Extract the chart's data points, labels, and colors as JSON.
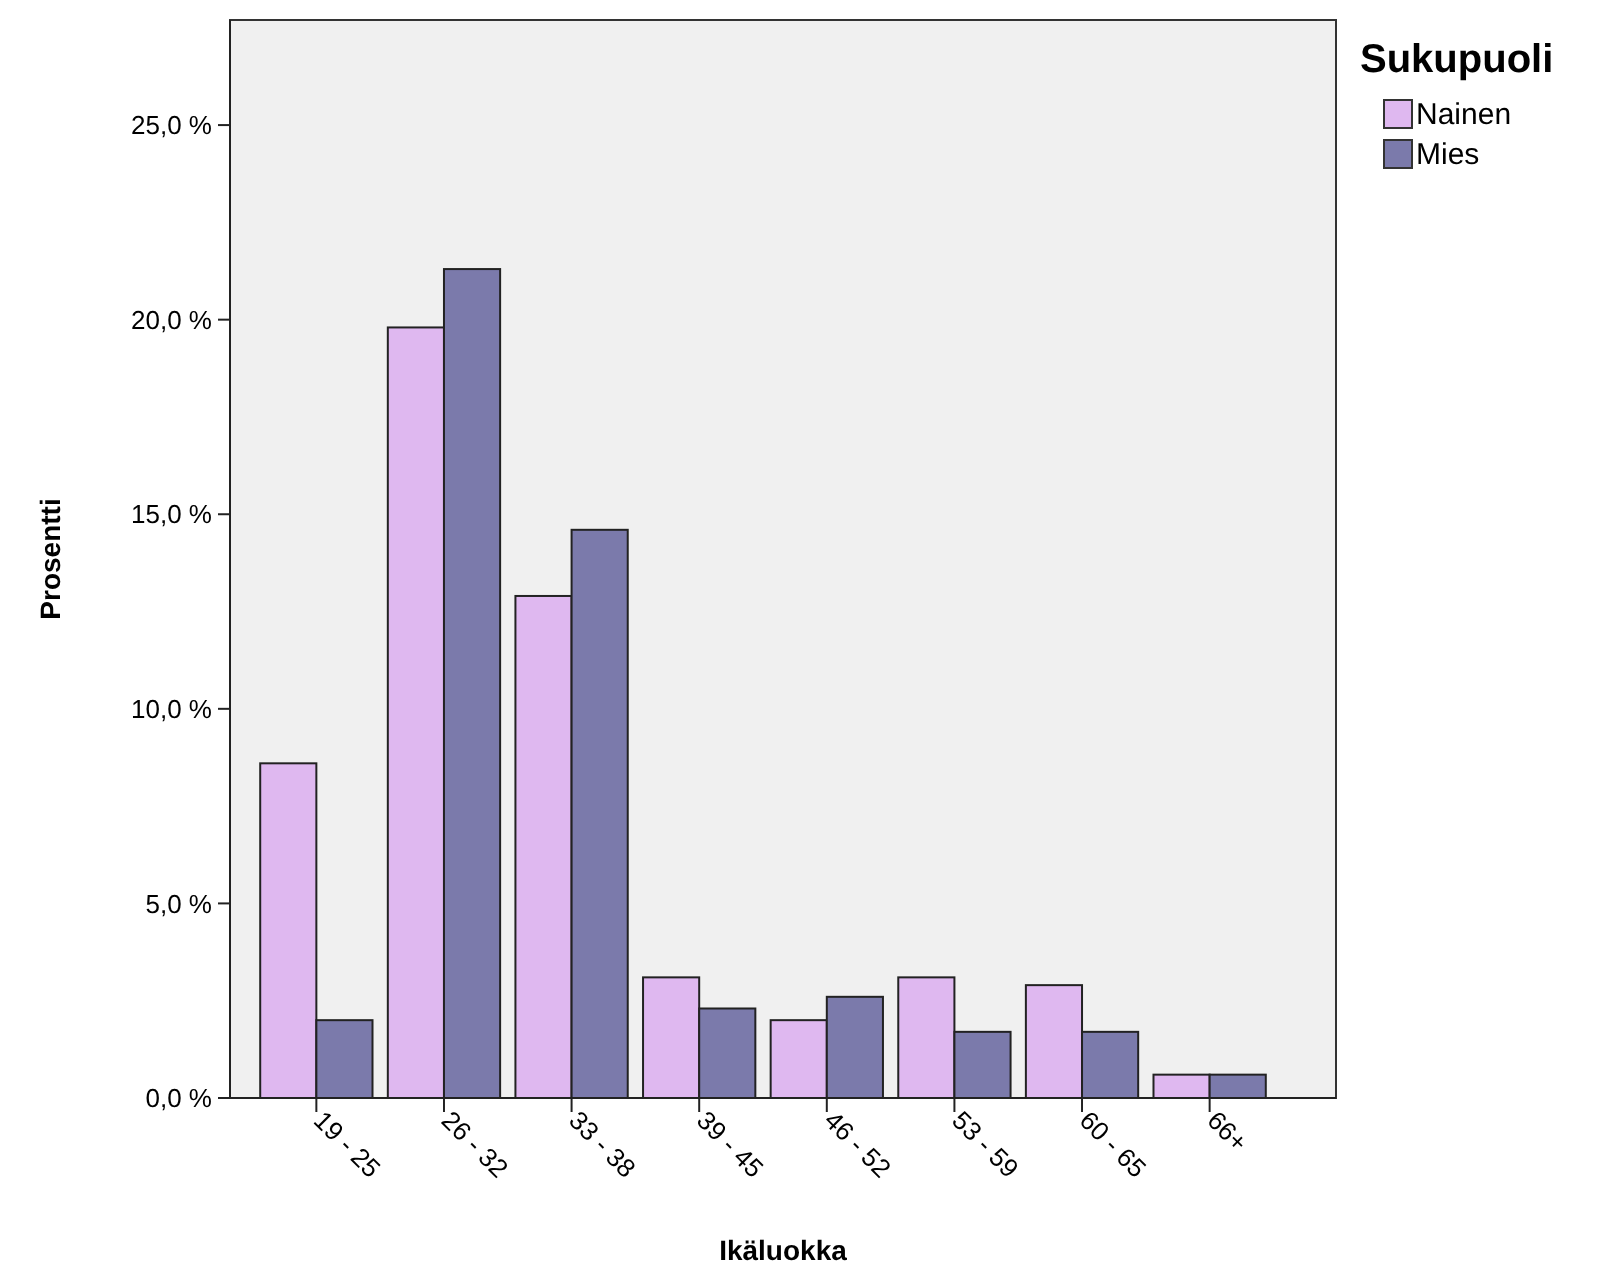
{
  "chart_data": {
    "type": "bar",
    "xlabel": "Ikäluokka",
    "ylabel": "Prosentti",
    "legend_title": "Sukupuoli",
    "legend": "top right",
    "grid": false,
    "categories": [
      "19 - 25",
      "26 - 32",
      "33 - 38",
      "39 - 45",
      "46 - 52",
      "53 - 59",
      "60 - 65",
      "66+"
    ],
    "series": [
      {
        "name": "Nainen",
        "color": "#dfb8f0",
        "values": [
          8.6,
          19.8,
          12.9,
          3.1,
          2.0,
          3.1,
          2.9,
          0.6
        ]
      },
      {
        "name": "Mies",
        "color": "#7b7aab",
        "values": [
          2.0,
          21.3,
          14.6,
          2.3,
          2.6,
          1.7,
          1.7,
          0.6
        ]
      }
    ],
    "ylim": [
      0,
      27.7
    ],
    "yticks": [
      {
        "value": 0,
        "label": "0,0 %"
      },
      {
        "value": 5,
        "label": "5,0 %"
      },
      {
        "value": 10,
        "label": "10,0 %"
      },
      {
        "value": 15,
        "label": "15,0 %"
      },
      {
        "value": 20,
        "label": "20,0 %"
      },
      {
        "value": 25,
        "label": "25,0 %"
      }
    ]
  }
}
